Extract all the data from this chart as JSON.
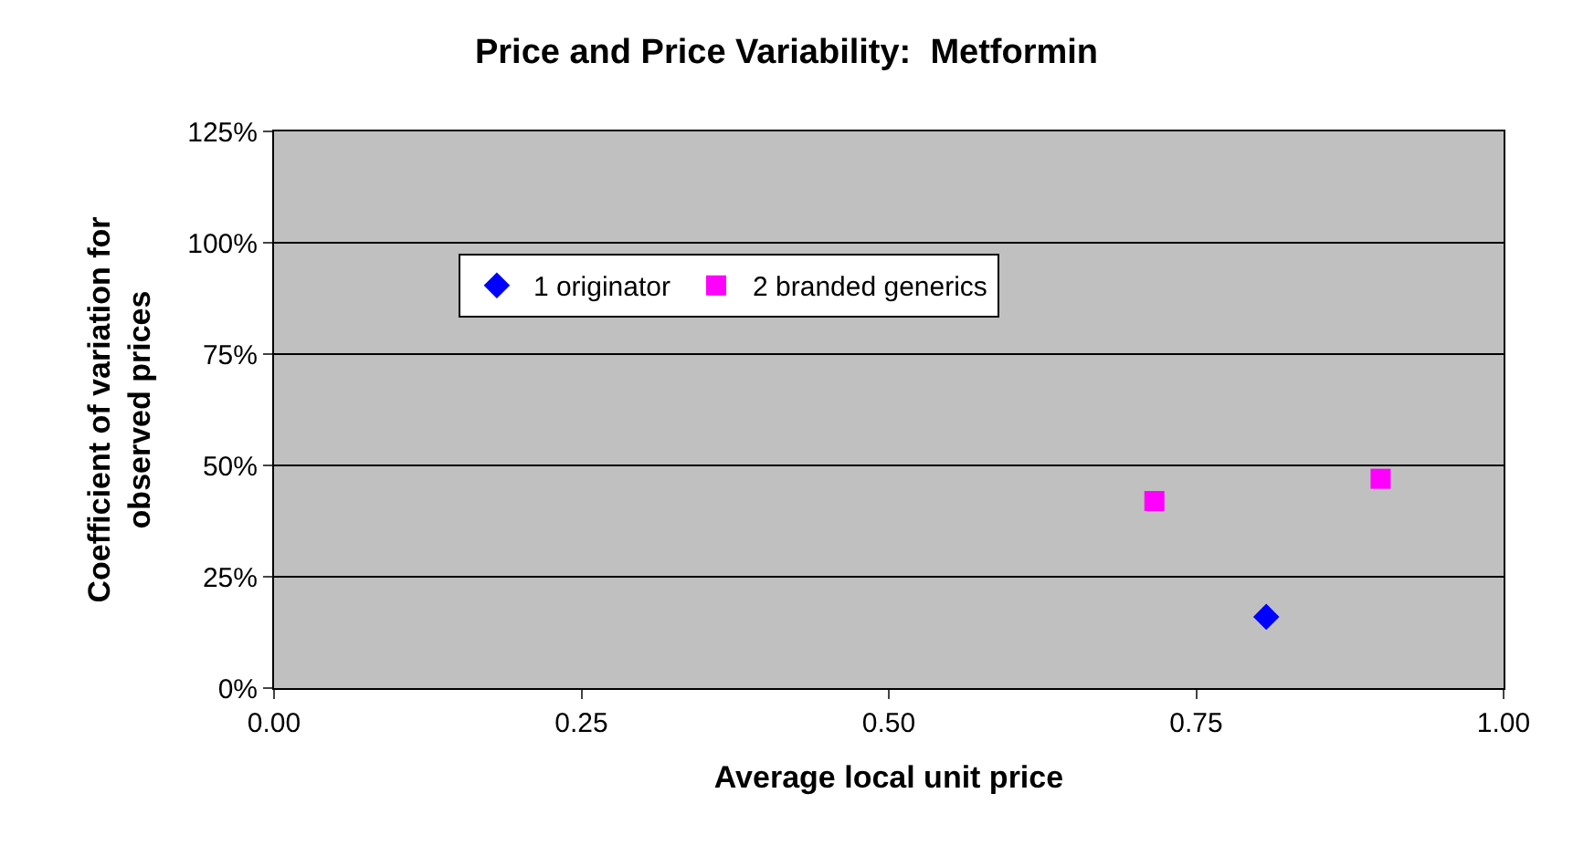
{
  "chart_data": {
    "type": "scatter",
    "title": "Price and Price Variability:  Metformin",
    "xlabel": "Average local unit price",
    "ylabel": "Coefficient of variation for observed prices",
    "series": [
      {
        "name": "1 originator",
        "color": "#0000ff",
        "marker": "diamond",
        "x": [
          0.807
        ],
        "values": [
          16
        ]
      },
      {
        "name": "2 branded generics",
        "color": "#ff00ff",
        "marker": "square",
        "x": [
          0.716,
          0.9
        ],
        "values": [
          42,
          47
        ]
      }
    ],
    "xlim": [
      0,
      1
    ],
    "xticks": [
      {
        "value": 0,
        "label": "0.00"
      },
      {
        "value": 0.25,
        "label": "0.25"
      },
      {
        "value": 0.5,
        "label": "0.50"
      },
      {
        "value": 0.75,
        "label": "0.75"
      },
      {
        "value": 1,
        "label": "1.00"
      }
    ],
    "ylim": [
      0,
      125
    ],
    "yticks": [
      {
        "value": 0,
        "label": "0%"
      },
      {
        "value": 25,
        "label": "25%"
      },
      {
        "value": 50,
        "label": "50%"
      },
      {
        "value": 75,
        "label": "75%"
      },
      {
        "value": 100,
        "label": "100%"
      },
      {
        "value": 125,
        "label": "125%"
      }
    ],
    "grid": "y",
    "legend": "top left"
  }
}
